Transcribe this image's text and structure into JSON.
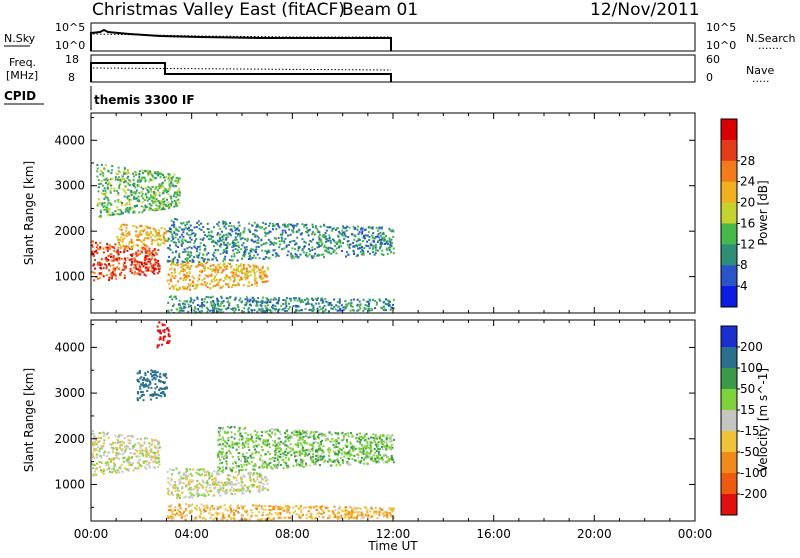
{
  "header": {
    "station": "Christmas Valley East (fitACF)",
    "beam": "Beam 01",
    "date": "12/Nov/2011"
  },
  "panels": {
    "nsky": {
      "label": "N.Sky",
      "left_ticks": [
        "10^5",
        "10^0"
      ],
      "right_ticks": [
        "10^5",
        "10^0"
      ],
      "right_label": "N.Search",
      "right_line": "......."
    },
    "freq": {
      "label_line1": "Freq.",
      "label_line2": "[MHz]",
      "left_ticks": [
        "18",
        "8"
      ],
      "right_ticks": [
        "60",
        "0"
      ],
      "right_label": "Nave",
      "right_line": "....."
    },
    "cpid": {
      "label": "CPID",
      "value": "themis 3300 IF"
    }
  },
  "chart_data": [
    {
      "type": "heatmap",
      "title": "",
      "quantity": "Power",
      "ylabel": "Slant Range [km]",
      "yticks": [
        1000,
        2000,
        3000,
        4000
      ],
      "ylim": [
        200,
        4600
      ],
      "xlabel": "Time UT",
      "xticks": [
        "00:00",
        "04:00",
        "08:00",
        "12:00",
        "16:00",
        "20:00",
        "00:00"
      ],
      "xlim_hours": [
        0,
        24
      ],
      "colorbar": {
        "label": "Power [dB]",
        "ticks": [
          "4",
          "8",
          "12",
          "16",
          "20",
          "24",
          "28"
        ],
        "colors": [
          "#0a1de0",
          "#2a55c8",
          "#2e8f76",
          "#47b84a",
          "#c6d22d",
          "#f0b020",
          "#f37b1a",
          "#e33a1a",
          "#d80000"
        ]
      },
      "features": [
        {
          "time_h": [
            0.0,
            2.7
          ],
          "range_km": [
            900,
            1800
          ],
          "level_db": 28
        },
        {
          "time_h": [
            1.0,
            3.0
          ],
          "range_km": [
            1600,
            2200
          ],
          "level_db": 20
        },
        {
          "time_h": [
            0.2,
            3.5
          ],
          "range_km": [
            2300,
            3500
          ],
          "level_db": 12
        },
        {
          "time_h": [
            3.0,
            7.0
          ],
          "range_km": [
            700,
            1400
          ],
          "level_db": 20
        },
        {
          "time_h": [
            3.0,
            12.0
          ],
          "range_km": [
            1300,
            2300
          ],
          "level_db": 8
        },
        {
          "time_h": [
            3.0,
            12.0
          ],
          "range_km": [
            200,
            600
          ],
          "level_db": 8
        }
      ]
    },
    {
      "type": "heatmap",
      "title": "",
      "quantity": "Velocity",
      "ylabel": "Slant Range [km]",
      "yticks": [
        1000,
        2000,
        3000,
        4000
      ],
      "ylim": [
        200,
        4600
      ],
      "xlabel": "Time UT",
      "xticks": [
        "00:00",
        "04:00",
        "08:00",
        "12:00",
        "16:00",
        "20:00",
        "00:00"
      ],
      "xlim_hours": [
        0,
        24
      ],
      "colorbar": {
        "label": "Velocity [m s^-1]",
        "ticks": [
          "200",
          "100",
          "50",
          "15",
          "-15",
          "-50",
          "-100",
          "-200"
        ],
        "colors": [
          "#1a2fd0",
          "#2a6f8c",
          "#3b9a4a",
          "#7ed23a",
          "#c6c6c0",
          "#f0c23a",
          "#f08a1a",
          "#ee5a10",
          "#e01010"
        ]
      },
      "features": [
        {
          "time_h": [
            0.0,
            2.7
          ],
          "range_km": [
            1200,
            2200
          ],
          "velocity_ms": 0
        },
        {
          "time_h": [
            1.8,
            3.0
          ],
          "range_km": [
            2800,
            3600
          ],
          "velocity_ms": 150
        },
        {
          "time_h": [
            2.6,
            3.1
          ],
          "range_km": [
            4000,
            4600
          ],
          "velocity_ms": -250
        },
        {
          "time_h": [
            3.0,
            7.0
          ],
          "range_km": [
            700,
            1400
          ],
          "velocity_ms": 0
        },
        {
          "time_h": [
            5.0,
            12.0
          ],
          "range_km": [
            1300,
            2300
          ],
          "velocity_ms": 40
        },
        {
          "time_h": [
            3.0,
            12.0
          ],
          "range_km": [
            200,
            600
          ],
          "velocity_ms": -40
        }
      ]
    }
  ],
  "time_axis_label": "Time UT"
}
